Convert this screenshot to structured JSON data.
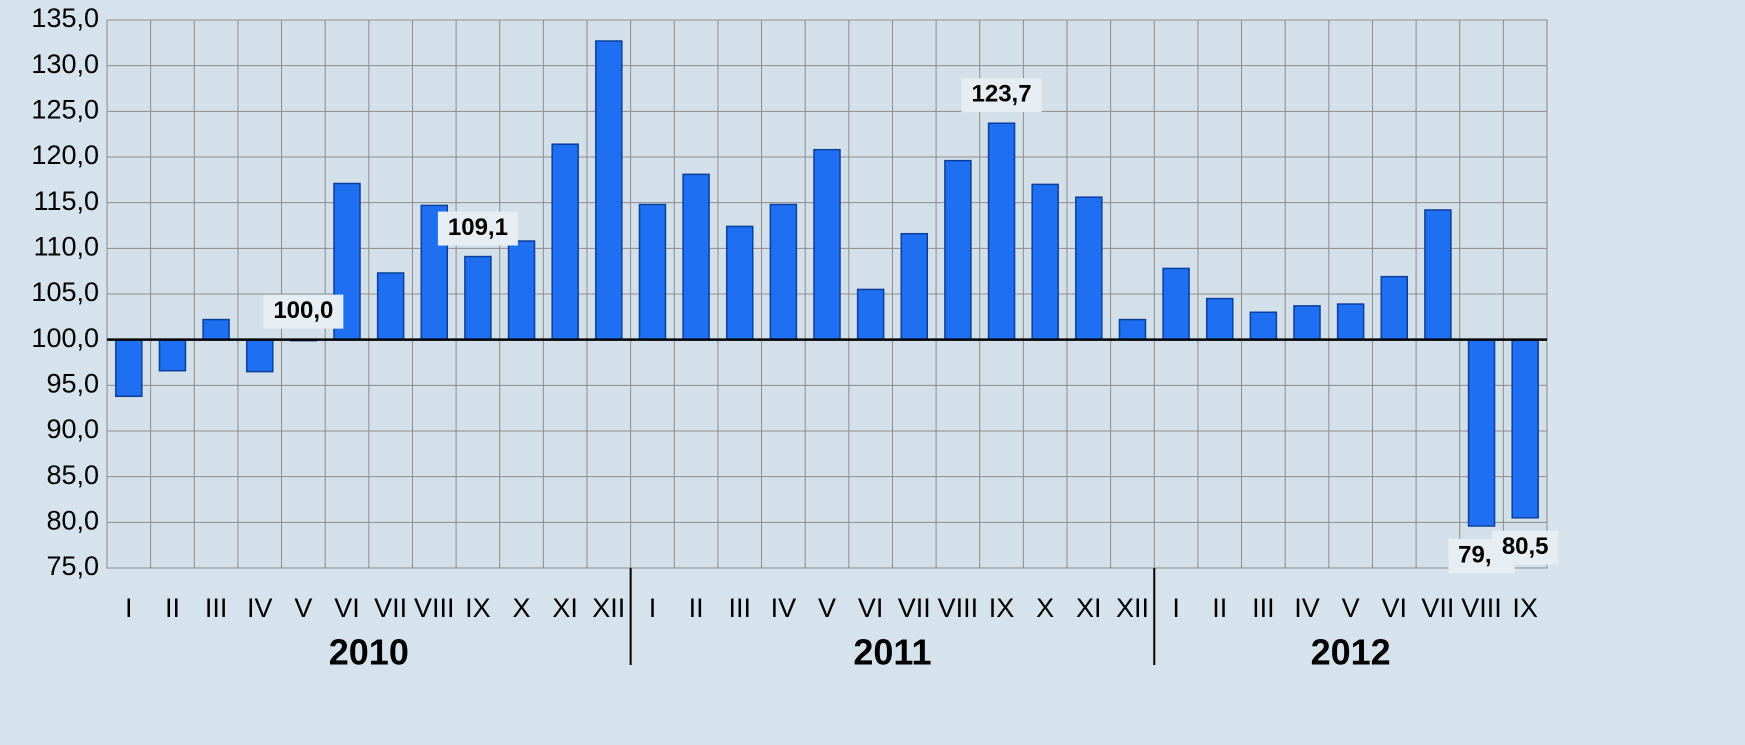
{
  "chart_data": {
    "type": "bar",
    "categories": [
      "I",
      "II",
      "III",
      "IV",
      "V",
      "VI",
      "VII",
      "VIII",
      "IX",
      "X",
      "XI",
      "XII",
      "I",
      "II",
      "III",
      "IV",
      "V",
      "VI",
      "VII",
      "VIII",
      "IX",
      "X",
      "XI",
      "XII",
      "I",
      "II",
      "III",
      "IV",
      "V",
      "VI",
      "VII",
      "VIII",
      "IX"
    ],
    "groups": [
      "2010",
      "2011",
      "2012"
    ],
    "values": [
      93.8,
      96.6,
      102.2,
      96.5,
      100.0,
      117.1,
      107.3,
      114.7,
      109.1,
      110.8,
      121.4,
      132.7,
      114.8,
      118.1,
      112.4,
      114.8,
      120.8,
      105.5,
      111.6,
      119.6,
      123.7,
      117.0,
      115.6,
      102.2,
      107.8,
      104.5,
      103.0,
      103.7,
      103.9,
      106.9,
      114.2,
      79.6,
      80.5
    ],
    "value_labels": [
      null,
      null,
      null,
      null,
      "100,0",
      null,
      null,
      null,
      "109,1",
      null,
      null,
      null,
      null,
      null,
      null,
      null,
      null,
      null,
      null,
      null,
      "123,7",
      null,
      null,
      null,
      null,
      null,
      null,
      null,
      null,
      null,
      null,
      "79,6",
      "80,5"
    ],
    "baseline": 100,
    "color": "#1f6ff2",
    "ylim": [
      75,
      135
    ],
    "yticks": [
      {
        "value": 75,
        "label": "75,0"
      },
      {
        "value": 80,
        "label": "80,0"
      },
      {
        "value": 85,
        "label": "85,0"
      },
      {
        "value": 90,
        "label": "90,0"
      },
      {
        "value": 95,
        "label": "95,0"
      },
      {
        "value": 100,
        "label": "100,0"
      },
      {
        "value": 105,
        "label": "105,0"
      },
      {
        "value": 110,
        "label": "110,0"
      },
      {
        "value": 115,
        "label": "115,0"
      },
      {
        "value": 120,
        "label": "120,0"
      },
      {
        "value": 125,
        "label": "125,0"
      },
      {
        "value": 130,
        "label": "130,0"
      },
      {
        "value": 135,
        "label": "135,0"
      }
    ],
    "grid": true
  }
}
